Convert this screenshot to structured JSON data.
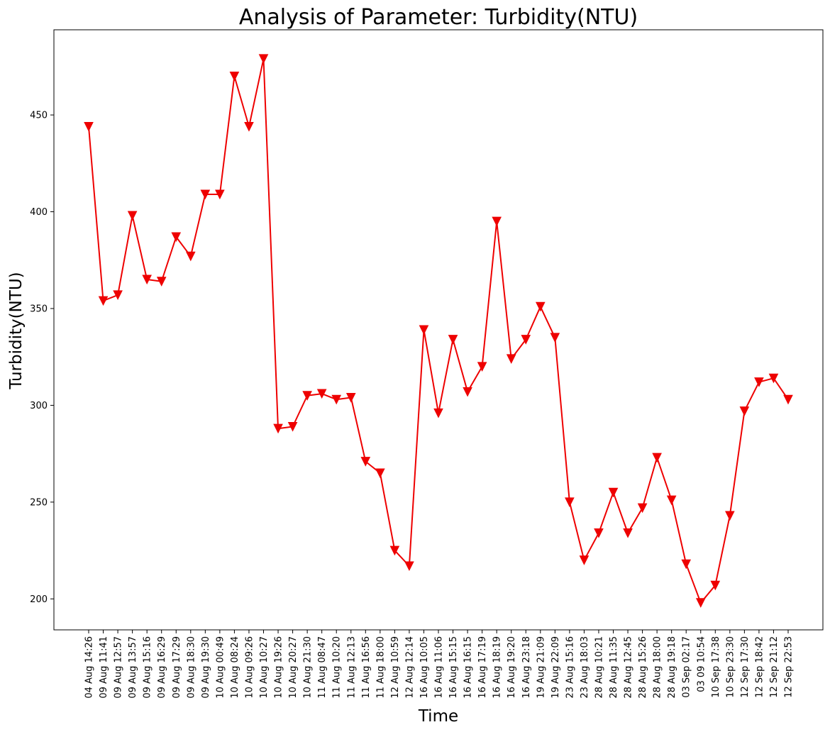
{
  "chart_data": {
    "type": "line",
    "title": "Analysis of Parameter: Turbidity(NTU)",
    "xlabel": "Time",
    "ylabel": "Turbidity(NTU)",
    "ylim": [
      184,
      494
    ],
    "yticks": [
      200,
      250,
      300,
      350,
      400,
      450
    ],
    "grid": false,
    "legend": "none",
    "color": "#ee0000",
    "marker": "triangle-down",
    "x": [
      "04 Aug 14:26",
      "09 Aug 11:41",
      "09 Aug 12:57",
      "09 Aug 13:57",
      "09 Aug 15:16",
      "09 Aug 16:29",
      "09 Aug 17:29",
      "09 Aug 18:30",
      "09 Aug 19:30",
      "10 Aug 00:49",
      "10 Aug 08:24",
      "10 Aug 09:26",
      "10 Aug 10:27",
      "10 Aug 19:26",
      "10 Aug 20:27",
      "10 Aug 21:30",
      "11 Aug 08:47",
      "11 Aug 10:20",
      "11 Aug 12:13",
      "11 Aug 16:56",
      "11 Aug 18:00",
      "12 Aug 10:59",
      "12 Aug 12:14",
      "16 Aug 10:05",
      "16 Aug 11:06",
      "16 Aug 15:15",
      "16 Aug 16:15",
      "16 Aug 17:19",
      "16 Aug 18:19",
      "16 Aug 19:20",
      "16 Aug 23:18",
      "19 Aug 21:09",
      "19 Aug 22:09",
      "23 Aug 15:16",
      "23 Aug 18:03",
      "28 Aug 10:21",
      "28 Aug 11:35",
      "28 Aug 12:45",
      "28 Aug 15:26",
      "28 Aug 18:00",
      "28 Aug 19:18",
      "03 Sep 02:17",
      "03 09 10:54",
      "10 Sep 17:38",
      "10 Sep 23:30",
      "12 Sep 17:30",
      "12 Sep 18:42",
      "12 Sep 21:12",
      "12 Sep 22:53"
    ],
    "values": [
      444,
      354,
      357,
      398,
      365,
      364,
      387,
      377,
      409,
      409,
      470,
      444,
      479,
      288,
      289,
      305,
      306,
      303,
      304,
      271,
      265,
      225,
      217,
      339,
      296,
      334,
      307,
      320,
      395,
      324,
      334,
      351,
      335,
      250,
      220,
      234,
      255,
      234,
      247,
      273,
      251,
      218,
      198,
      207,
      243,
      297,
      312,
      314,
      303
    ]
  }
}
